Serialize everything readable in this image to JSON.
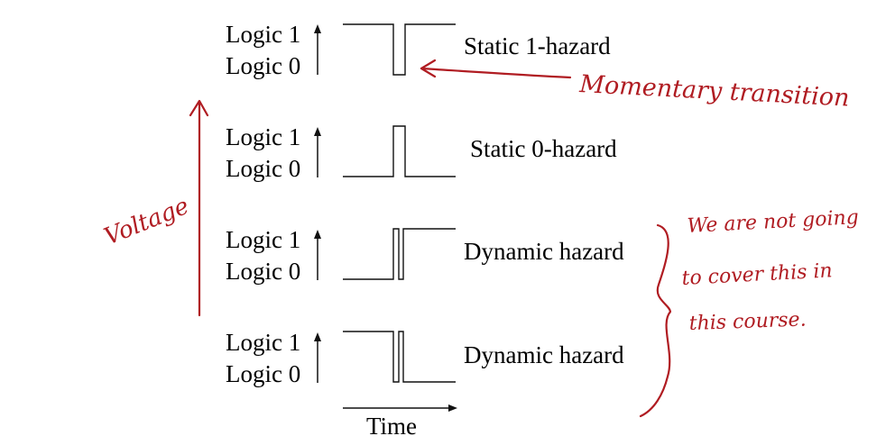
{
  "levels": {
    "high": "Logic 1",
    "low": "Logic 0"
  },
  "rows": [
    {
      "id": "static-1",
      "name": "Static 1-hazard"
    },
    {
      "id": "static-0",
      "name": "Static 0-hazard"
    },
    {
      "id": "dynamic-rising",
      "name": "Dynamic hazard"
    },
    {
      "id": "dynamic-falling",
      "name": "Dynamic hazard"
    }
  ],
  "time_label": "Time",
  "annotations": {
    "voltage": "Voltage",
    "momentary": "Momentary transition",
    "note": [
      "We are not going",
      "to cover this in",
      "this course."
    ]
  },
  "colors": {
    "ink": "#111111",
    "annotation": "#b01c22"
  }
}
